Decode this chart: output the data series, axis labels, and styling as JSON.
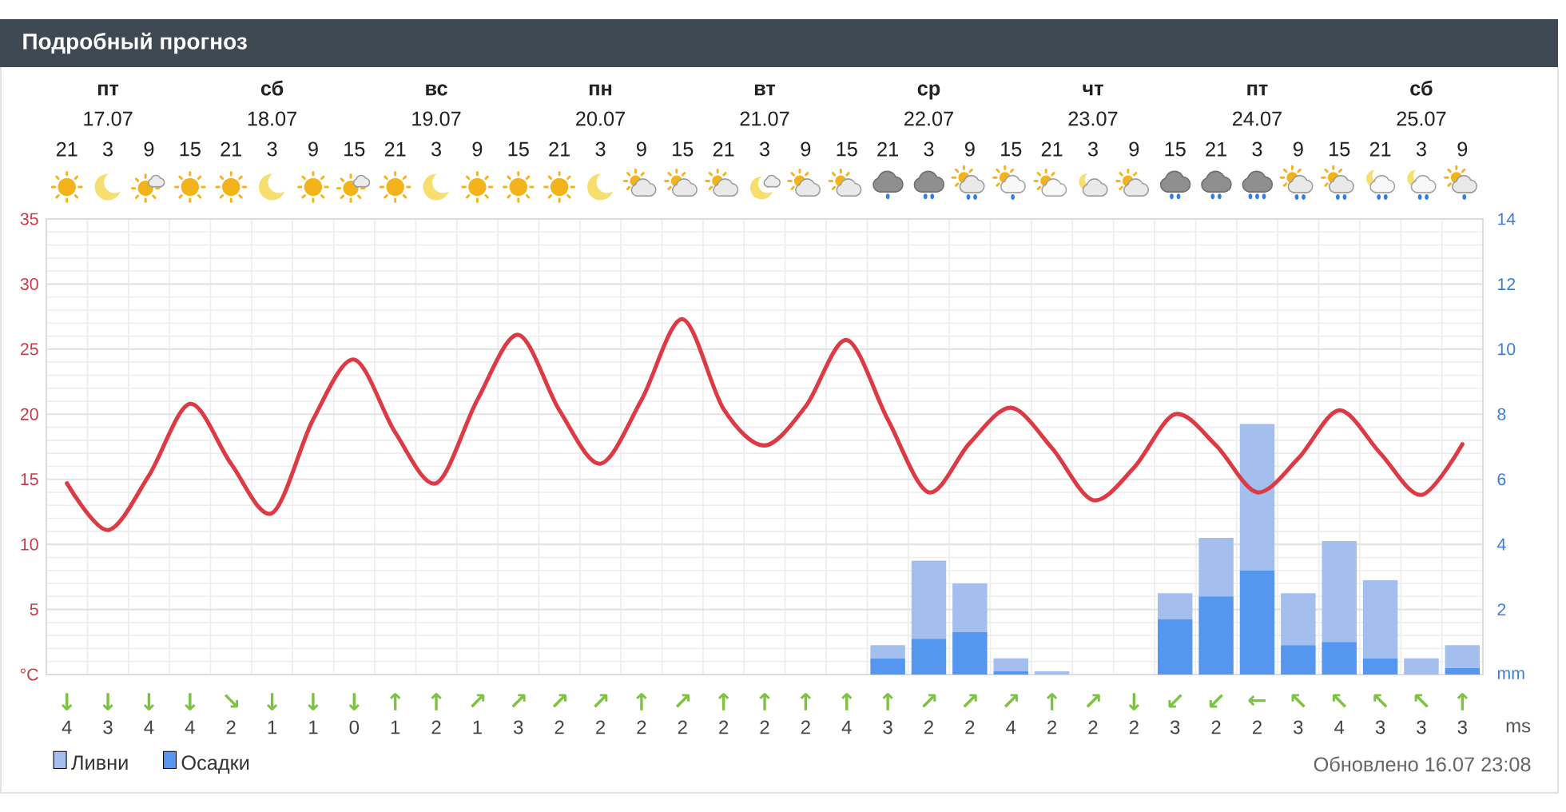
{
  "chart_data": [
    {
      "type": "line",
      "title": "Подробный прогноз",
      "categories": [
        "21",
        "**пт** 17.07 3",
        "9",
        "15",
        "21",
        "**сб** 18.07 3",
        "9",
        "15",
        "21",
        "**вс** 19.07 3",
        "9",
        "15",
        "21",
        "**пн** 20.07 3",
        "9",
        "15",
        "21",
        "**вт** 21.07 3",
        "9",
        "15",
        "21",
        "**ср** 22.07 3",
        "9",
        "15",
        "21",
        "**чт** 23.07 3",
        "9",
        "15",
        "21",
        "**пт** 24.07 3",
        "9",
        "15",
        "21",
        "**сб** 25.07 3",
        "9"
      ],
      "ylim": [
        0,
        35
      ],
      "yticks": [
        {
          "value": 0,
          "label": "°C"
        },
        5,
        10,
        15,
        20,
        25,
        30,
        35
      ],
      "y2lim": [
        0,
        14
      ],
      "y2ticks": [
        {
          "value": 0,
          "label": "mm"
        },
        2,
        4,
        6,
        8,
        10,
        12,
        14
      ],
      "grid": true,
      "legend": "bottom left",
      "stacked": true,
      "series": [
        {
          "type": "line",
          "color": "#dc3a45",
          "values": [
            14.7,
            11.1,
            15.3,
            20.8,
            16.2,
            12.4,
            19.6,
            24.2,
            18.6,
            14.7,
            21.1,
            26.1,
            20.3,
            16.2,
            21.1,
            27.3,
            20.4,
            17.6,
            20.6,
            25.7,
            19.6,
            14.0,
            17.8,
            20.5,
            17.4,
            13.4,
            15.9,
            20.0,
            17.6,
            14.0,
            16.6,
            20.3,
            17.0,
            13.8,
            17.7
          ]
        },
        {
          "type": "bar",
          "name": "Осадки",
          "color": "#5596ef",
          "axis": "y2",
          "values": [
            0,
            0,
            0,
            0,
            0,
            0,
            0,
            0,
            0,
            0,
            0,
            0,
            0,
            0,
            0,
            0,
            0,
            0,
            0,
            0,
            0.5,
            1.1,
            1.3,
            0.1,
            0,
            0,
            0,
            1.7,
            2.4,
            3.2,
            0.9,
            1.0,
            0.5,
            0,
            0.2
          ]
        },
        {
          "type": "bar",
          "name": "Ливни",
          "color": "#a4bfee",
          "axis": "y2",
          "values": [
            0,
            0,
            0,
            0,
            0,
            0,
            0,
            0,
            0,
            0,
            0,
            0,
            0,
            0,
            0,
            0,
            0,
            0,
            0,
            0,
            0.4,
            2.4,
            1.5,
            0.4,
            0.1,
            0,
            0,
            0.8,
            1.8,
            4.5,
            1.6,
            3.1,
            2.4,
            0.5,
            0.7
          ]
        }
      ],
      "annotations": [
        "Обновлено 16.07 23:08"
      ]
    },
    {
      "type": "other",
      "categories": [
        "↓",
        "↓",
        "↓",
        "↓",
        "↘",
        "↓",
        "↓",
        "↓",
        "↑",
        "↑",
        "↗",
        "↗",
        "↗",
        "↗",
        "↑",
        "↗",
        "↑",
        "↑",
        "↑",
        "↑",
        "↑",
        "↗",
        "↗",
        "↗",
        "↑",
        "↗",
        "↓",
        "↙",
        "↙",
        "←",
        "↖",
        "↖",
        "↖",
        "↖",
        "↑"
      ],
      "values": [
        4,
        3,
        4,
        4,
        2,
        1,
        1,
        0,
        1,
        2,
        1,
        3,
        2,
        2,
        2,
        2,
        2,
        2,
        2,
        4,
        3,
        2,
        2,
        4,
        2,
        2,
        2,
        3,
        2,
        2,
        3,
        4,
        3,
        3,
        3
      ],
      "data_labels": true,
      "ylabel": "ms",
      "color": "#7dc243"
    }
  ]
}
